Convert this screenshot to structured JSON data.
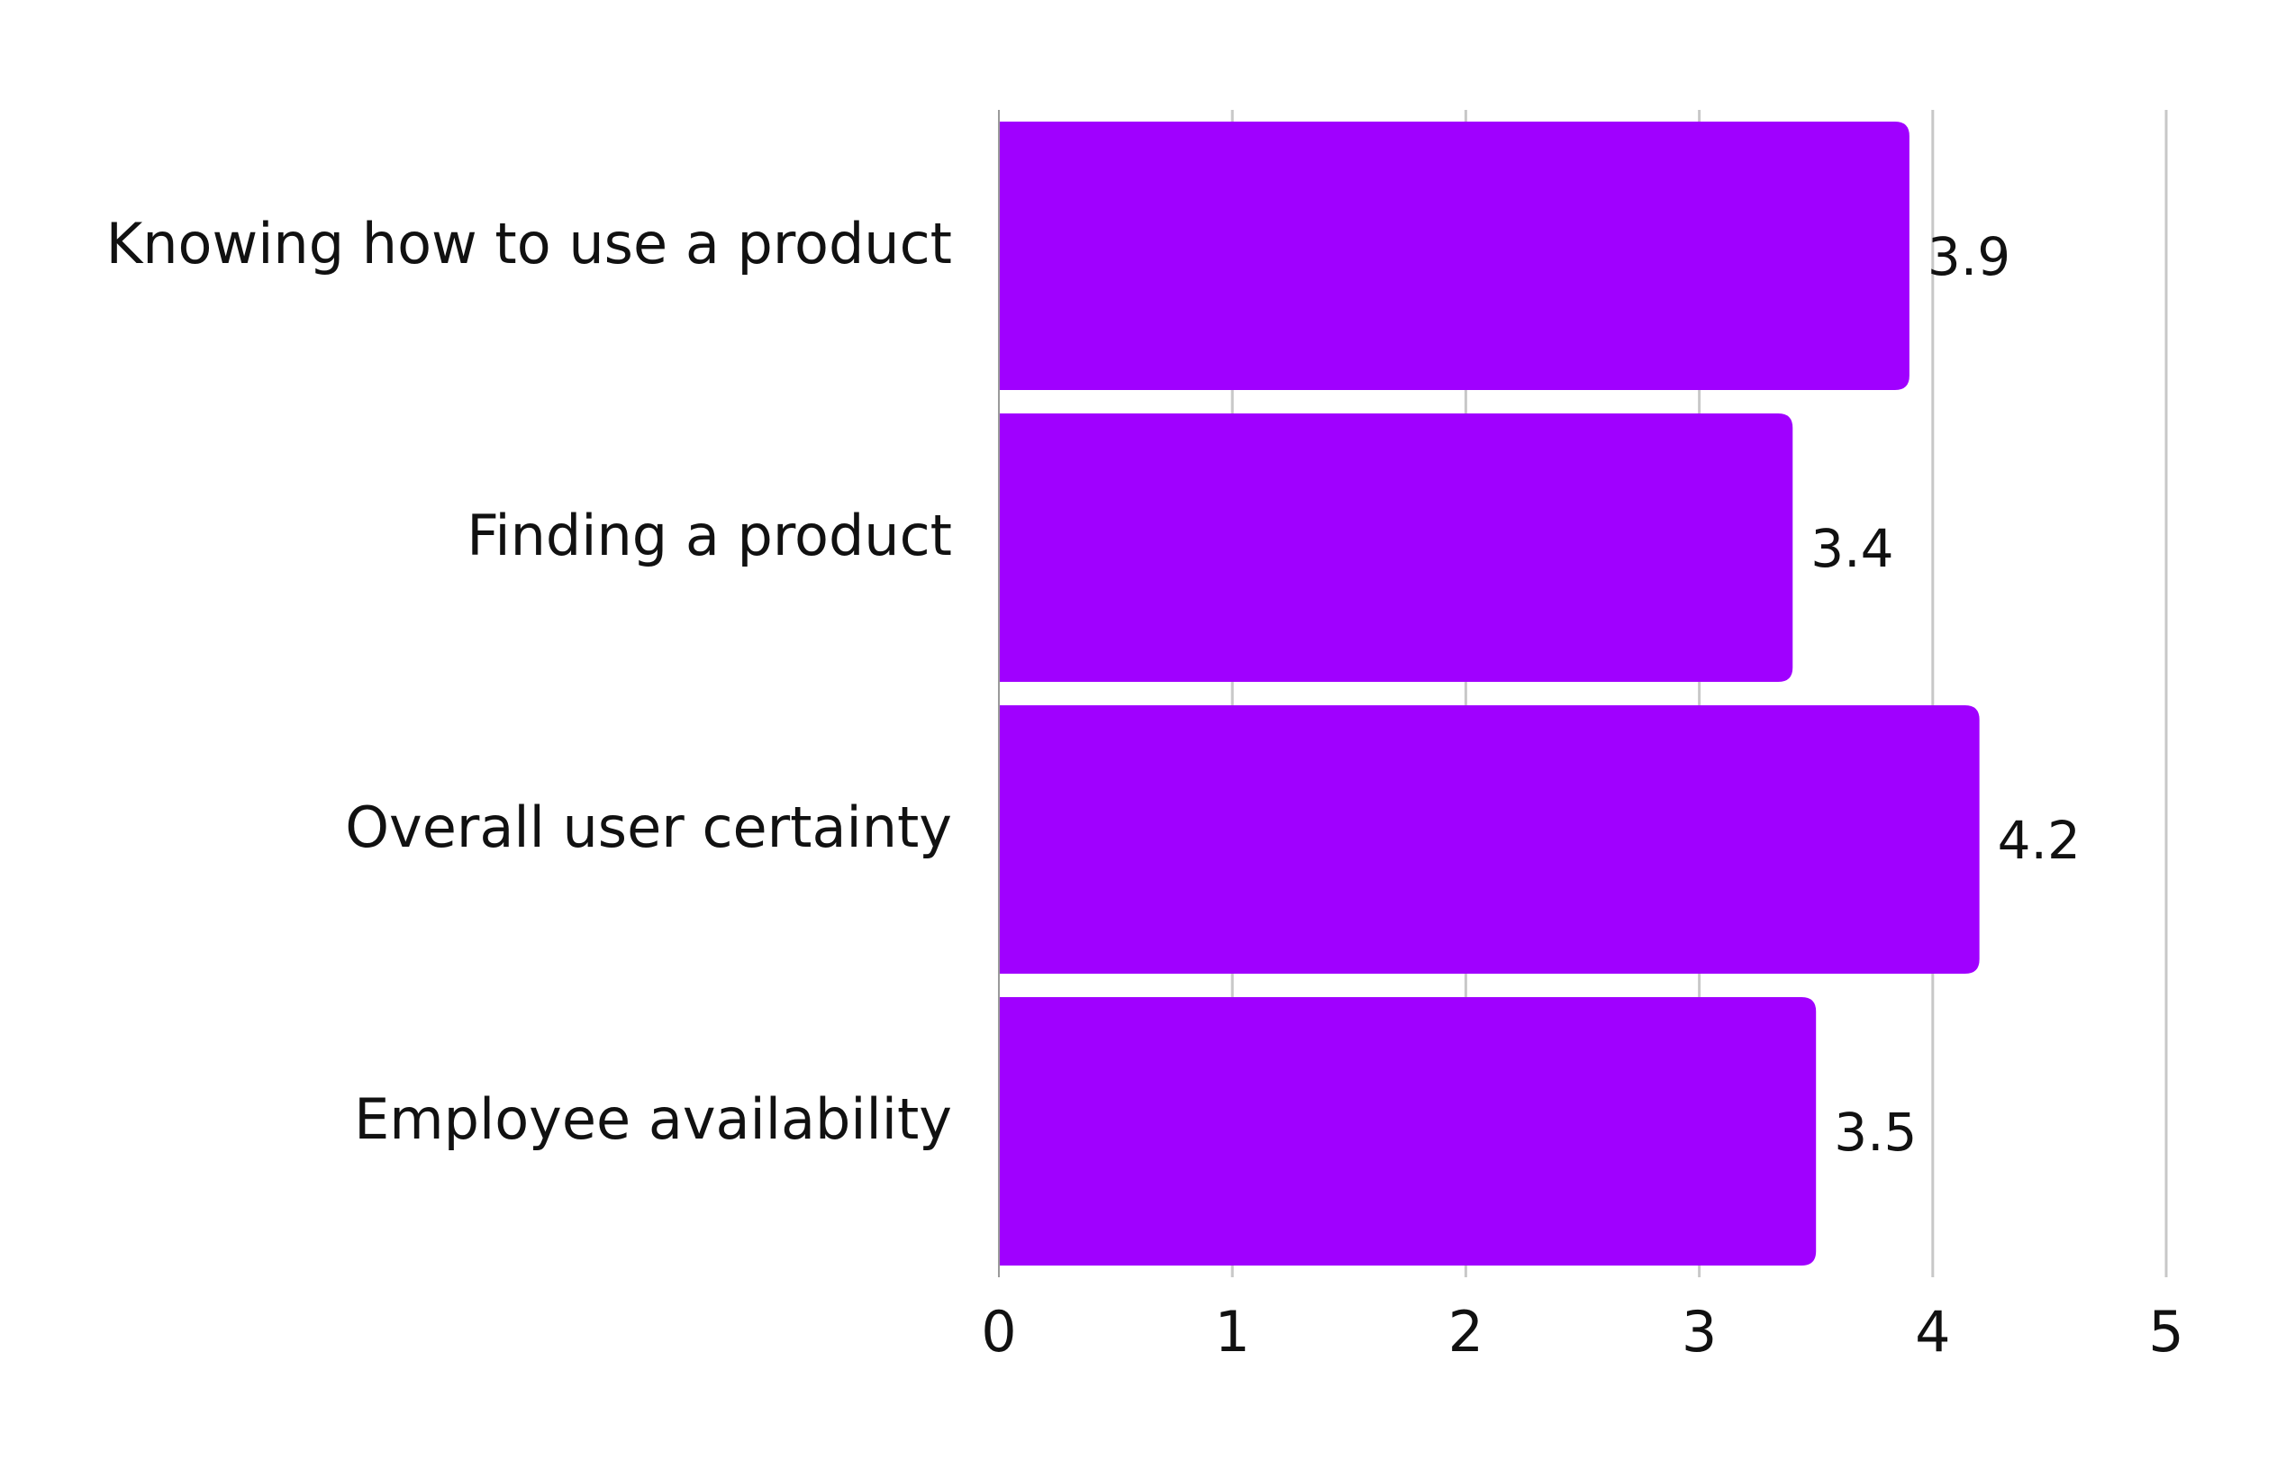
{
  "chart_data": {
    "type": "bar",
    "orientation": "horizontal",
    "categories": [
      "Knowing how to use a product",
      "Finding a product",
      "Overall user certainty",
      "Employee availability"
    ],
    "values": [
      3.9,
      3.4,
      4.2,
      3.5
    ],
    "value_labels": [
      "3.9",
      "3.4",
      "4.2",
      "3.5"
    ],
    "xlim": [
      0,
      5
    ],
    "xticks": [
      "0",
      "1",
      "2",
      "3",
      "4",
      "5"
    ],
    "title": "",
    "xlabel": "",
    "ylabel": "",
    "grid": true,
    "legend": "none",
    "bar_color": "#a000ff"
  }
}
